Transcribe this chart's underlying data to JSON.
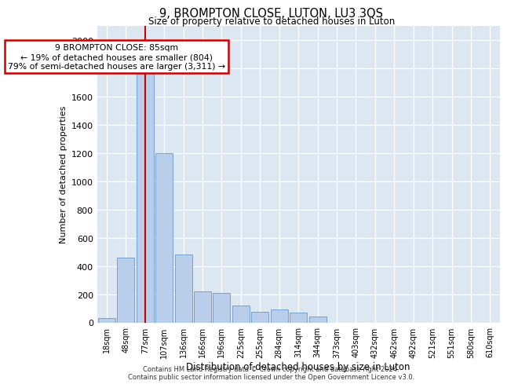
{
  "title1": "9, BROMPTON CLOSE, LUTON, LU3 3QS",
  "title2": "Size of property relative to detached houses in Luton",
  "xlabel": "Distribution of detached houses by size in Luton",
  "ylabel": "Number of detached properties",
  "categories": [
    "18sqm",
    "48sqm",
    "77sqm",
    "107sqm",
    "136sqm",
    "166sqm",
    "196sqm",
    "225sqm",
    "255sqm",
    "284sqm",
    "314sqm",
    "344sqm",
    "373sqm",
    "403sqm",
    "432sqm",
    "462sqm",
    "492sqm",
    "521sqm",
    "551sqm",
    "580sqm",
    "610sqm"
  ],
  "values": [
    30,
    460,
    1950,
    1200,
    480,
    220,
    210,
    120,
    75,
    90,
    70,
    40,
    0,
    0,
    0,
    0,
    0,
    0,
    0,
    0,
    0
  ],
  "bar_color": "#b8ceea",
  "bar_edge_color": "#6699cc",
  "bg_color": "#dde7f2",
  "vline_x_index": 2,
  "annotation_line1": "9 BROMPTON CLOSE: 85sqm",
  "annotation_line2": "← 19% of detached houses are smaller (804)",
  "annotation_line3": "79% of semi-detached houses are larger (3,311) →",
  "annotation_box_facecolor": "#ffffff",
  "annotation_box_edgecolor": "#cc0000",
  "vline_color": "#cc0000",
  "footer1": "Contains HM Land Registry data © Crown copyright and database right 2024.",
  "footer2": "Contains public sector information licensed under the Open Government Licence v3.0.",
  "ylim_max": 2100,
  "yticks": [
    0,
    200,
    400,
    600,
    800,
    1000,
    1200,
    1400,
    1600,
    1800,
    2000
  ]
}
